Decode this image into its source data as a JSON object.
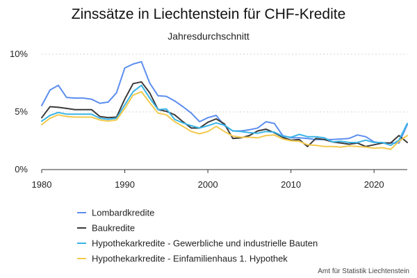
{
  "chart_data": {
    "type": "line",
    "title": "Zinssätze in Liechtenstein für CHF-Kredite",
    "subtitle": "Jahresdurchschnitt",
    "xlabel": "",
    "ylabel": "",
    "xlim": [
      1980,
      2024
    ],
    "ylim": [
      0,
      10
    ],
    "x_ticks": [
      1980,
      1990,
      2000,
      2010,
      2020
    ],
    "y_ticks": [
      0,
      5,
      10
    ],
    "y_tick_labels": [
      "0%",
      "5%",
      "10%"
    ],
    "grid": true,
    "legend_position": "bottom",
    "source": "Amt für Statistik Liechtenstein",
    "x": [
      1980,
      1981,
      1982,
      1983,
      1984,
      1985,
      1986,
      1987,
      1988,
      1989,
      1990,
      1991,
      1992,
      1993,
      1994,
      1995,
      1996,
      1997,
      1998,
      1999,
      2000,
      2001,
      2002,
      2003,
      2004,
      2005,
      2006,
      2007,
      2008,
      2009,
      2010,
      2011,
      2012,
      2013,
      2014,
      2015,
      2016,
      2017,
      2018,
      2019,
      2020,
      2021,
      2022,
      2023,
      2024
    ],
    "series": [
      {
        "name": "Lombardkredite",
        "color": "#5b8def",
        "values": [
          5.55,
          6.9,
          7.3,
          6.25,
          6.2,
          6.2,
          6.1,
          5.75,
          5.85,
          6.65,
          8.8,
          9.15,
          9.35,
          7.5,
          6.4,
          6.35,
          5.95,
          5.45,
          4.9,
          4.15,
          4.5,
          4.7,
          3.8,
          3.35,
          3.35,
          3.45,
          3.6,
          4.15,
          4.0,
          2.95,
          2.75,
          2.75,
          2.7,
          2.6,
          2.6,
          2.6,
          2.65,
          2.7,
          3.0,
          2.85,
          2.4,
          2.3,
          2.3,
          2.3,
          3.9
        ]
      },
      {
        "name": "Baukredite",
        "color": "#3a3a3a",
        "values": [
          4.5,
          5.45,
          5.4,
          5.3,
          5.2,
          5.2,
          5.2,
          4.6,
          4.5,
          4.55,
          6.1,
          7.45,
          7.6,
          6.65,
          5.2,
          5.05,
          4.75,
          4.15,
          3.6,
          3.6,
          4.1,
          4.4,
          3.95,
          2.7,
          2.75,
          2.95,
          3.35,
          3.5,
          3.2,
          2.8,
          2.55,
          2.6,
          2.0,
          2.7,
          2.6,
          2.4,
          2.3,
          2.2,
          2.3,
          2.0,
          2.15,
          2.3,
          2.3,
          2.95,
          2.35
        ]
      },
      {
        "name": "Hypothekarkredite - Gewerbliche und industrielle Bauten",
        "color": "#39b4e6",
        "values": [
          4.2,
          4.7,
          4.95,
          4.8,
          4.8,
          4.8,
          4.8,
          4.45,
          4.35,
          4.45,
          5.6,
          6.75,
          7.3,
          6.2,
          5.2,
          5.25,
          4.35,
          4.05,
          3.8,
          3.6,
          3.8,
          4.05,
          3.85,
          3.35,
          3.3,
          3.2,
          3.15,
          3.3,
          3.25,
          2.9,
          2.8,
          3.05,
          2.85,
          2.85,
          2.75,
          2.4,
          2.45,
          2.35,
          2.35,
          2.55,
          2.35,
          2.35,
          2.1,
          2.55,
          4.0
        ]
      },
      {
        "name": "Hypothekarkredite - Einfamilienhaus 1. Hypothek",
        "color": "#f2c94c",
        "values": [
          3.9,
          4.45,
          4.75,
          4.6,
          4.55,
          4.55,
          4.55,
          4.3,
          4.2,
          4.3,
          5.3,
          6.45,
          6.75,
          5.8,
          4.9,
          4.75,
          4.15,
          3.75,
          3.3,
          3.1,
          3.3,
          3.75,
          3.3,
          2.9,
          2.8,
          2.8,
          2.75,
          2.95,
          3.0,
          2.65,
          2.5,
          2.45,
          2.15,
          2.1,
          2.0,
          2.0,
          1.95,
          2.05,
          2.0,
          1.95,
          1.85,
          1.9,
          1.75,
          2.45,
          2.95
        ]
      }
    ]
  }
}
